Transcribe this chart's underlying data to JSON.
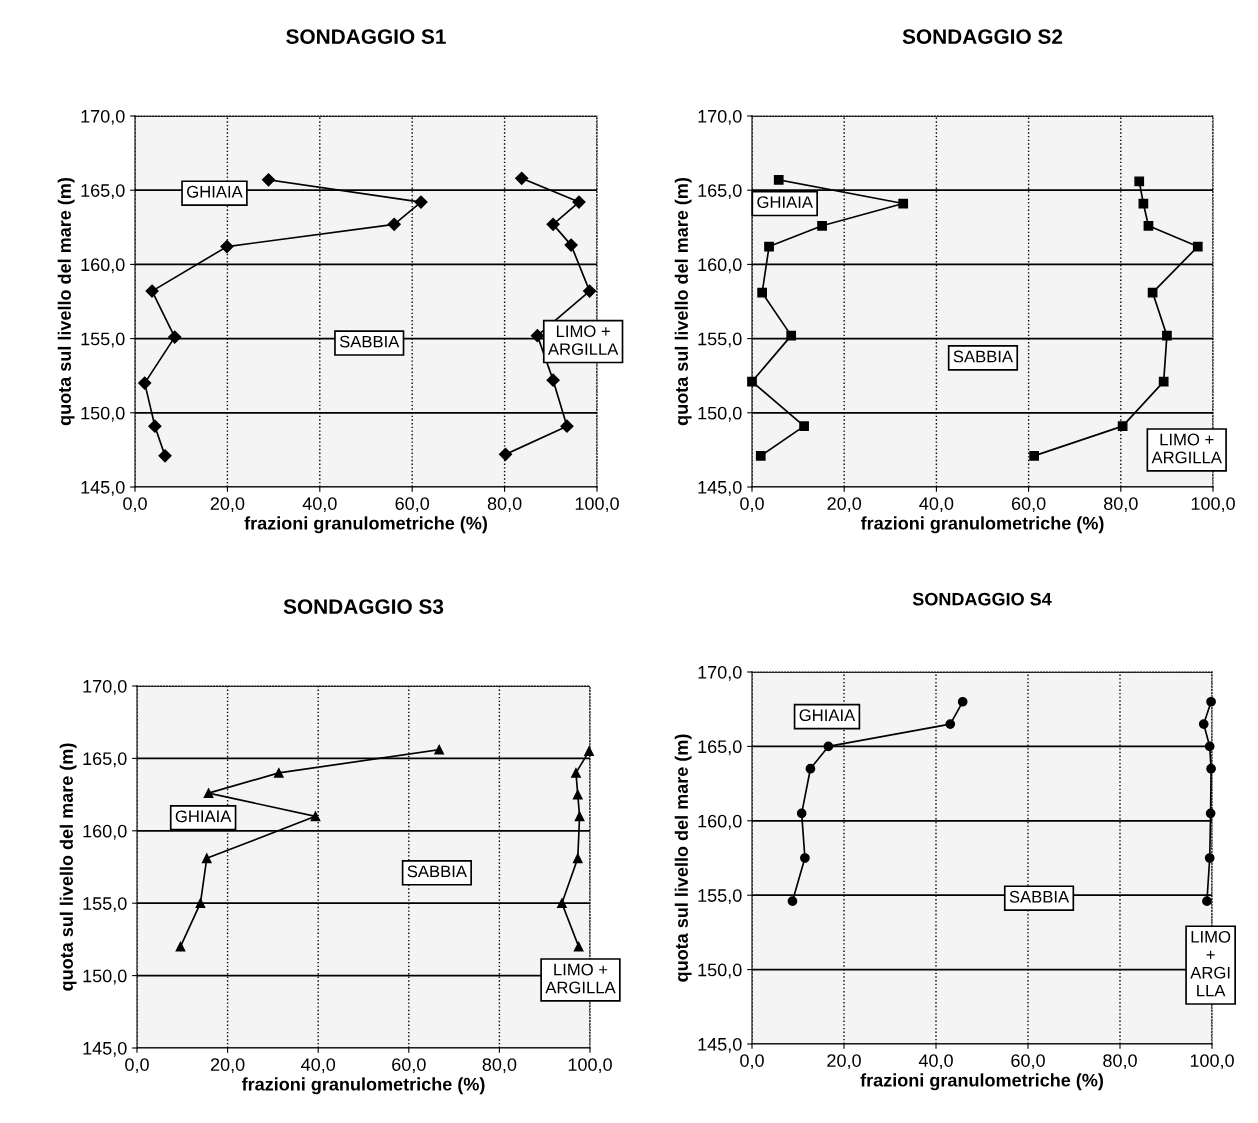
{
  "chart_data": [
    {
      "type": "line",
      "title": "SONDAGGIO S1",
      "xlabel": "frazioni granulometriche (%)",
      "ylabel": "quota sul livello del mare (m)",
      "xlim": [
        0,
        100
      ],
      "ylim": [
        145,
        170
      ],
      "xticks": [
        {
          "value": 0,
          "label": "0,0"
        },
        {
          "value": 20,
          "label": "20,0"
        },
        {
          "value": 40,
          "label": "40,0"
        },
        {
          "value": 60,
          "label": "60,0"
        },
        {
          "value": 80,
          "label": "80,0"
        },
        {
          "value": 100,
          "label": "100,0"
        }
      ],
      "yticks": [
        {
          "value": 145,
          "label": "145,0"
        },
        {
          "value": 150,
          "label": "150,0"
        },
        {
          "value": 155,
          "label": "155,0"
        },
        {
          "value": 160,
          "label": "160,0"
        },
        {
          "value": 165,
          "label": "165,0"
        },
        {
          "value": 170,
          "label": "170,0"
        }
      ],
      "grid": true,
      "marker": "diamond",
      "line_style": "solid",
      "series": [
        {
          "color": "#000000",
          "x": [
            28.9,
            61.9,
            56.1,
            19.9,
            3.7,
            8.6,
            2.1,
            4.3,
            6.5
          ],
          "values": [
            165.7,
            164.2,
            162.7,
            161.2,
            158.2,
            155.1,
            152.0,
            149.1,
            147.1
          ]
        },
        {
          "color": "#000000",
          "x": [
            83.7,
            96.1,
            90.5,
            94.4,
            98.4,
            87.1,
            90.5,
            93.5,
            80.2
          ],
          "values": [
            165.8,
            164.2,
            162.7,
            161.3,
            158.2,
            155.2,
            152.2,
            149.1,
            147.2
          ]
        }
      ],
      "annotations": [
        "GHIAIA",
        "SABBIA",
        "LIMO +\nARGILLA"
      ]
    },
    {
      "type": "line",
      "title": "SONDAGGIO S2",
      "xlabel": "frazioni granulometriche (%)",
      "ylabel": "quota sul livello del mare (m)",
      "xlim": [
        0,
        100
      ],
      "ylim": [
        145,
        170
      ],
      "xticks": [
        {
          "value": 0,
          "label": "0,0"
        },
        {
          "value": 20,
          "label": "20,0"
        },
        {
          "value": 40,
          "label": "40,0"
        },
        {
          "value": 60,
          "label": "60,0"
        },
        {
          "value": 80,
          "label": "80,0"
        },
        {
          "value": 100,
          "label": "100,0"
        }
      ],
      "yticks": [
        {
          "value": 145,
          "label": "145,0"
        },
        {
          "value": 150,
          "label": "150,0"
        },
        {
          "value": 155,
          "label": "155,0"
        },
        {
          "value": 160,
          "label": "160,0"
        },
        {
          "value": 165,
          "label": "165,0"
        },
        {
          "value": 170,
          "label": "170,0"
        }
      ],
      "grid": true,
      "marker": "square",
      "line_style": "solid",
      "series": [
        {
          "color": "#000000",
          "x": [
            5.8,
            32.8,
            15.2,
            3.7,
            2.2,
            8.5,
            0.0,
            11.3,
            1.9
          ],
          "values": [
            165.7,
            164.1,
            162.6,
            161.2,
            158.1,
            155.2,
            152.1,
            149.1,
            147.1
          ]
        },
        {
          "color": "#000000",
          "x": [
            84.0,
            84.9,
            86.0,
            96.7,
            86.9,
            90.0,
            89.3,
            80.4,
            61.2
          ],
          "values": [
            165.6,
            164.1,
            162.6,
            161.2,
            158.1,
            155.2,
            152.1,
            149.1,
            147.1
          ]
        }
      ],
      "annotations": [
        "GHIAIA",
        "SABBIA",
        "LIMO +\nARGILLA"
      ]
    },
    {
      "type": "line",
      "title": "SONDAGGIO S3",
      "xlabel": "frazioni granulometriche (%)",
      "ylabel": "quota sul livello del mare (m)",
      "xlim": [
        0,
        100
      ],
      "ylim": [
        145,
        170
      ],
      "xticks": [
        {
          "value": 0,
          "label": "0,0"
        },
        {
          "value": 20,
          "label": "20,0"
        },
        {
          "value": 40,
          "label": "40,0"
        },
        {
          "value": 60,
          "label": "60,0"
        },
        {
          "value": 80,
          "label": "80,0"
        },
        {
          "value": 100,
          "label": "100,0"
        }
      ],
      "yticks": [
        {
          "value": 145,
          "label": "145,0"
        },
        {
          "value": 150,
          "label": "150,0"
        },
        {
          "value": 155,
          "label": "155,0"
        },
        {
          "value": 160,
          "label": "160,0"
        },
        {
          "value": 165,
          "label": "165,0"
        },
        {
          "value": 170,
          "label": "170,0"
        }
      ],
      "grid": true,
      "marker": "triangle",
      "line_style": "solid",
      "series": [
        {
          "color": "#000000",
          "x": [
            66.7,
            31.3,
            15.8,
            39.4,
            15.4,
            14.0,
            9.6
          ],
          "values": [
            165.6,
            164.0,
            162.6,
            161.0,
            158.1,
            155.0,
            152.0
          ]
        },
        {
          "color": "#000000",
          "x": [
            99.8,
            96.9,
            97.3,
            97.7,
            97.3,
            93.8,
            97.5
          ],
          "values": [
            165.5,
            164.0,
            162.5,
            161.0,
            158.1,
            155.0,
            152.0
          ]
        }
      ],
      "annotations": [
        "GHIAIA",
        "SABBIA",
        "LIMO +\nARGILLA"
      ]
    },
    {
      "type": "line",
      "title": "SONDAGGIO S4",
      "xlabel": "frazioni granulometriche (%)",
      "ylabel": "quota sul livello del mare (m)",
      "xlim": [
        0,
        100
      ],
      "ylim": [
        145,
        170
      ],
      "xticks": [
        {
          "value": 0,
          "label": "0,0"
        },
        {
          "value": 20,
          "label": "20,0"
        },
        {
          "value": 40,
          "label": "40,0"
        },
        {
          "value": 60,
          "label": "60,0"
        },
        {
          "value": 80,
          "label": "80,0"
        },
        {
          "value": 100,
          "label": "100,0"
        }
      ],
      "yticks": [
        {
          "value": 145,
          "label": "145,0"
        },
        {
          "value": 150,
          "label": "150,0"
        },
        {
          "value": 155,
          "label": "155,0"
        },
        {
          "value": 160,
          "label": "160,0"
        },
        {
          "value": 165,
          "label": "165,0"
        },
        {
          "value": 170,
          "label": "170,0"
        }
      ],
      "grid": true,
      "marker": "circle",
      "line_style": "solid",
      "series": [
        {
          "color": "#000000",
          "x": [
            45.8,
            43.1,
            16.6,
            12.7,
            10.8,
            11.5,
            8.8
          ],
          "values": [
            168.0,
            166.5,
            165.0,
            163.5,
            160.5,
            157.5,
            154.6
          ]
        },
        {
          "color": "#000000",
          "x": [
            99.8,
            98.2,
            99.5,
            99.8,
            99.7,
            99.5,
            98.9
          ],
          "values": [
            168.0,
            166.5,
            165.0,
            163.5,
            160.5,
            157.5,
            154.6
          ]
        }
      ],
      "annotations": [
        "GHIAIA",
        "SABBIA",
        "LIMO\n+\nARGI\nLLA"
      ]
    }
  ]
}
